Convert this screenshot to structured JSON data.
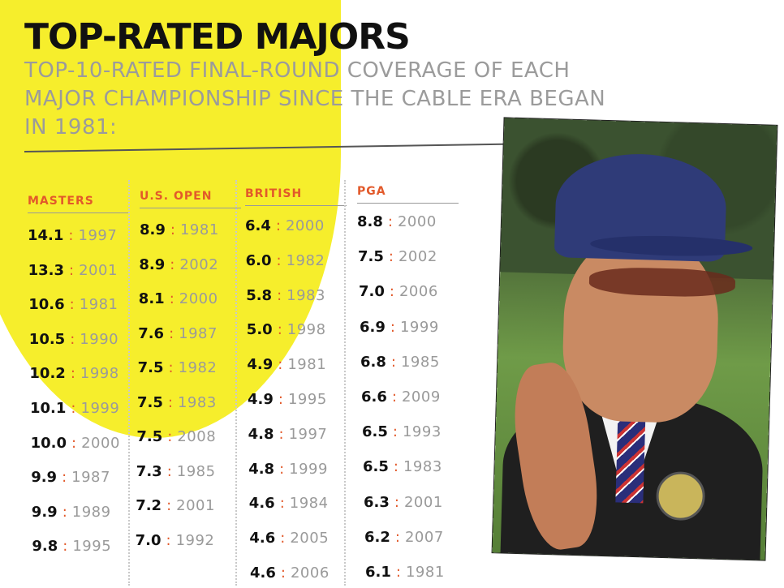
{
  "title": "TOP-RATED MAJORS",
  "subtitle": "TOP-10-RATED FINAL-ROUND COVERAGE OF EACH MAJOR CHAMPIONSHIP SINCE THE CABLE ERA BEGAN IN 1981:",
  "separator": ":",
  "colors": {
    "accent": "#e2592a",
    "highlight": "#f6ee2c",
    "text": "#111111",
    "muted": "#9a9a9a"
  },
  "columns": [
    {
      "name": "MASTERS",
      "rows": [
        {
          "rating": "14.1",
          "year": "1997"
        },
        {
          "rating": "13.3",
          "year": "2001"
        },
        {
          "rating": "10.6",
          "year": "1981"
        },
        {
          "rating": "10.5",
          "year": "1990"
        },
        {
          "rating": "10.2",
          "year": "1998"
        },
        {
          "rating": "10.1",
          "year": "1999"
        },
        {
          "rating": "10.0",
          "year": "2000"
        },
        {
          "rating": "9.9",
          "year": "1987"
        },
        {
          "rating": "9.9",
          "year": "1989"
        },
        {
          "rating": "9.8",
          "year": "1995"
        }
      ]
    },
    {
      "name": "U.S. OPEN",
      "rows": [
        {
          "rating": "8.9",
          "year": "1981"
        },
        {
          "rating": "8.9",
          "year": "2002"
        },
        {
          "rating": "8.1",
          "year": "2000"
        },
        {
          "rating": "7.6",
          "year": "1987"
        },
        {
          "rating": "7.5",
          "year": "1982"
        },
        {
          "rating": "7.5",
          "year": "1983"
        },
        {
          "rating": "7.5",
          "year": "2008"
        },
        {
          "rating": "7.3",
          "year": "1985"
        },
        {
          "rating": "7.2",
          "year": "2001"
        },
        {
          "rating": "7.0",
          "year": "1992"
        }
      ]
    },
    {
      "name": "BRITISH",
      "rows": [
        {
          "rating": "6.4",
          "year": "2000"
        },
        {
          "rating": "6.0",
          "year": "1982"
        },
        {
          "rating": "5.8",
          "year": "1983"
        },
        {
          "rating": "5.0",
          "year": "1998"
        },
        {
          "rating": "4.9",
          "year": "1981"
        },
        {
          "rating": "4.9",
          "year": "1995"
        },
        {
          "rating": "4.8",
          "year": "1997"
        },
        {
          "rating": "4.8",
          "year": "1999"
        },
        {
          "rating": "4.6",
          "year": "1984"
        },
        {
          "rating": "4.6",
          "year": "2005"
        },
        {
          "rating": "4.6",
          "year": "2006"
        }
      ]
    },
    {
      "name": "PGA",
      "rows": [
        {
          "rating": "8.8",
          "year": "2000"
        },
        {
          "rating": "7.5",
          "year": "2002"
        },
        {
          "rating": "7.0",
          "year": "2006"
        },
        {
          "rating": "6.9",
          "year": "1999"
        },
        {
          "rating": "6.8",
          "year": "1985"
        },
        {
          "rating": "6.6",
          "year": "2009"
        },
        {
          "rating": "6.5",
          "year": "1993"
        },
        {
          "rating": "6.5",
          "year": "1983"
        },
        {
          "rating": "6.3",
          "year": "2001"
        },
        {
          "rating": "6.2",
          "year": "2007"
        },
        {
          "rating": "6.1",
          "year": "1981"
        }
      ]
    }
  ],
  "photo": {
    "icon": "golf-official-photo"
  }
}
